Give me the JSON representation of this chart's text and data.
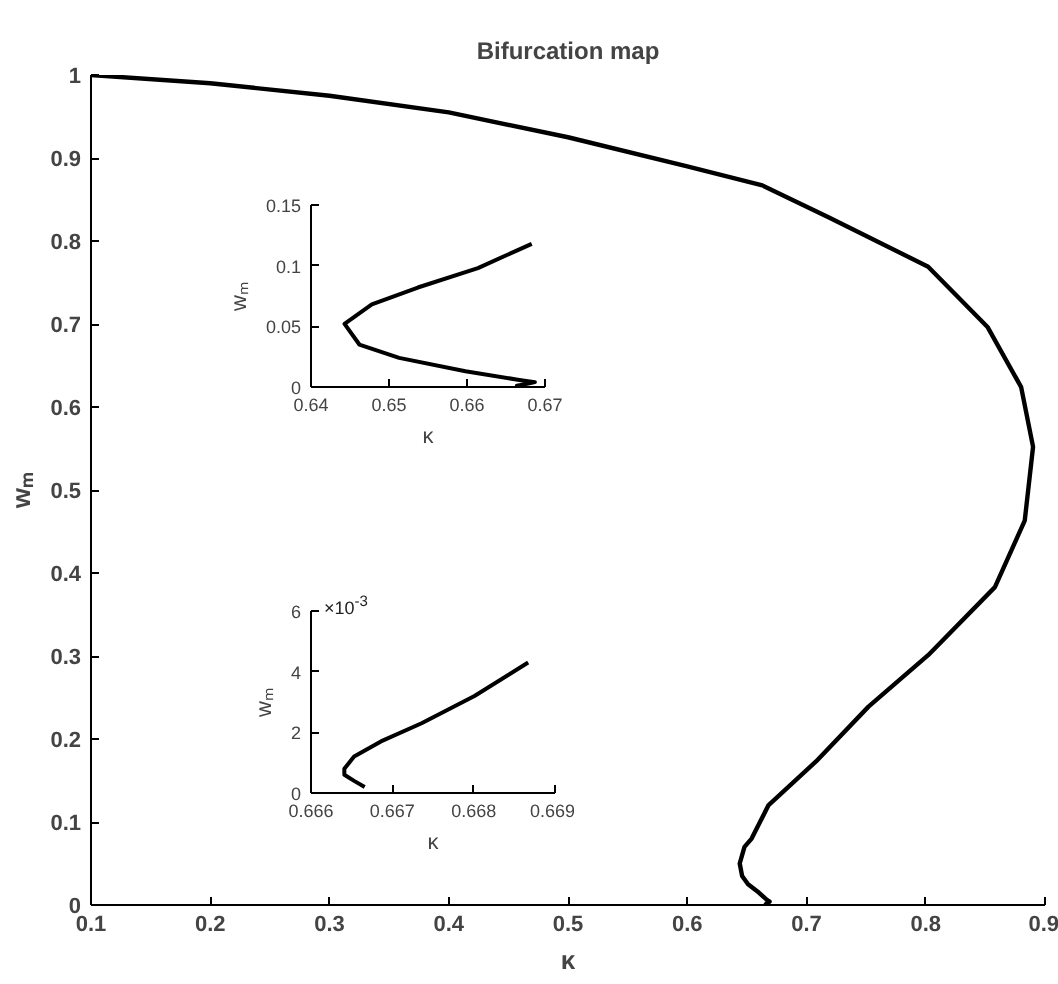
{
  "chart_data": [
    {
      "type": "line",
      "title": "Bifurcation map",
      "xlabel": "κ",
      "ylabel": "wₘ",
      "xlim": [
        0.1,
        0.9
      ],
      "ylim": [
        0,
        1
      ],
      "xticks": [
        0.1,
        0.2,
        0.3,
        0.4,
        0.5,
        0.6,
        0.7,
        0.8,
        0.9
      ],
      "yticks": [
        0,
        0.1,
        0.2,
        0.3,
        0.4,
        0.5,
        0.6,
        0.7,
        0.8,
        0.9,
        1
      ],
      "series": [
        {
          "color": "#000000",
          "x": [
            0.1,
            0.2,
            0.3,
            0.4,
            0.5,
            0.6,
            0.663,
            0.718,
            0.802,
            0.852,
            0.88,
            0.89,
            0.883,
            0.858,
            0.802,
            0.752,
            0.708,
            0.668,
            0.661,
            0.654,
            0.648,
            0.644,
            0.646,
            0.651,
            0.66,
            0.667,
            0.669,
            0.668,
            0.666,
            0.667
          ],
          "values": [
            1.0,
            0.99,
            0.975,
            0.955,
            0.925,
            0.89,
            0.867,
            0.829,
            0.769,
            0.696,
            0.624,
            0.552,
            0.463,
            0.383,
            0.301,
            0.239,
            0.173,
            0.12,
            0.1,
            0.08,
            0.07,
            0.05,
            0.035,
            0.025,
            0.015,
            0.006,
            0.004,
            0.003,
            0.001,
            0
          ]
        }
      ]
    },
    {
      "type": "line",
      "xlabel": "κ",
      "ylabel": "wₘ",
      "xlim": [
        0.64,
        0.67
      ],
      "ylim": [
        0,
        0.15
      ],
      "xticks": [
        0.64,
        0.65,
        0.66,
        0.67
      ],
      "yticks": [
        0,
        0.05,
        0.1,
        0.15
      ],
      "series": [
        {
          "color": "#000000",
          "x": [
            0.6683,
            0.6614,
            0.6537,
            0.6478,
            0.6443,
            0.6462,
            0.6513,
            0.6598,
            0.6665,
            0.6687,
            0.668,
            0.6664,
            0.6667
          ],
          "values": [
            0.118,
            0.098,
            0.082,
            0.068,
            0.052,
            0.035,
            0.024,
            0.013,
            0.006,
            0.004,
            0.003,
            0.001,
            0
          ]
        }
      ]
    },
    {
      "type": "line",
      "xlabel": "κ",
      "ylabel": "wₘ",
      "xlim": [
        0.666,
        0.669
      ],
      "ylim": [
        0,
        6
      ],
      "xticks": [
        0.666,
        0.667,
        0.668,
        0.669
      ],
      "yticks": [
        0,
        2,
        4,
        6
      ],
      "annotations": [
        "×10$^{-3}$"
      ],
      "series": [
        {
          "color": "#000000",
          "x": [
            0.66867,
            0.66801,
            0.66736,
            0.66686,
            0.66653,
            0.66641,
            0.66641,
            0.66653,
            0.66666
          ],
          "values": [
            4.3,
            3.2,
            2.3,
            1.7,
            1.2,
            0.8,
            0.6,
            0.4,
            0.2
          ]
        }
      ]
    }
  ]
}
